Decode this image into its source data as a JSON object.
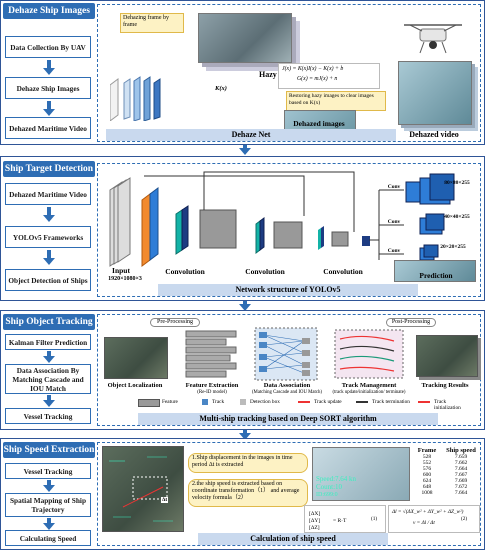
{
  "stages": [
    {
      "title": "Dehaze Ship Images",
      "steps": [
        "Data Collection By UAV",
        "Dehaze Ship Images",
        "Dehazed Maritime Video"
      ],
      "caption": "Dehaze Net",
      "labels": {
        "frame_note": "Dehazing frame by frame",
        "hazy": "Hazy video",
        "kx": "K(x)",
        "restore": "Restoring hazy images to clear images based on K(x)",
        "dehazed_images": "Dehazed images",
        "dehazed_video": "Dehazed video",
        "eq1": "J(x) = K(x)I(x) − K(x) + b",
        "eq2": "G(x) = mJ(x) + n"
      }
    },
    {
      "title": "Ship Target Detection",
      "steps": [
        "Dehazed Maritime Video",
        "YOLOv5 Frameworks",
        "Object Detection of Ships"
      ],
      "caption": "Network structure of YOLOv5",
      "labels": {
        "input": "Input",
        "input_size": "1920×1080×3",
        "conv": "Convolution",
        "conv_small": "Conv",
        "s1": "80×80×255",
        "s2": "40×40×255",
        "s3": "20×20×255",
        "prediction": "Prediction"
      }
    },
    {
      "title": "Ship Object Tracking",
      "steps": [
        "Kalman Filter Prediction",
        "Data Association By Matching Cascade and IOU Match",
        "Vessel Tracking"
      ],
      "caption": "Multi-ship tracking based on Deep SORT algorithm",
      "labels": {
        "pre": "Pre-Processing",
        "post": "Post-Processing",
        "obj_loc": "Object Localization",
        "feat": "Feature Extraction",
        "feat_sub": "(Re-ID model)",
        "assoc": "Data Association",
        "assoc_sub": "(Matching Cascade and IOU Match)",
        "track_mgmt": "Track Management",
        "track_mgmt_sub": "(track update/initialization/ terminate)",
        "results": "Tracking Results",
        "legend": [
          "Feature",
          "Track",
          "Detection box",
          "Track update",
          "Track termination",
          "Track initialization"
        ]
      }
    },
    {
      "title": "Ship Speed Extraction",
      "steps": [
        "Vessel Tracking",
        "Spatial Mapping of Ship Trajectory",
        "Calculating Speed"
      ],
      "caption": "Calculation of ship speed",
      "labels": {
        "note1": "1.Ship displacement in the images in time period Δt is extracted",
        "note2": "2.the ship speed is extracted based on coordinate transformation（1） and average velocity formula（2）",
        "overlay_speed": "Speed:7.64 kn",
        "overlay_count": "Count:10",
        "overlay_id": "ID:699:0",
        "dt": "Δt",
        "eq_speed": "Δl = √(ΔX_w² + ΔY_w² + ΔZ_w²)",
        "eq_v": "v = Δl / Δt",
        "eq_num1": "(1)",
        "eq_num2": "(2)",
        "table_header": [
          "Frame",
          "Ship speed"
        ],
        "table_rows": [
          [
            "528",
            "7.659"
          ],
          [
            "552",
            "7.662"
          ],
          [
            "576",
            "7.664"
          ],
          [
            "600",
            "7.667"
          ],
          [
            "624",
            "7.669"
          ],
          [
            "648",
            "7.672"
          ],
          [
            "1008",
            "7.664"
          ]
        ]
      }
    }
  ],
  "colors": {
    "accent": "#2e6db4",
    "panel_border": "#2e6db4",
    "caption_bg": "#c9d9ee"
  }
}
